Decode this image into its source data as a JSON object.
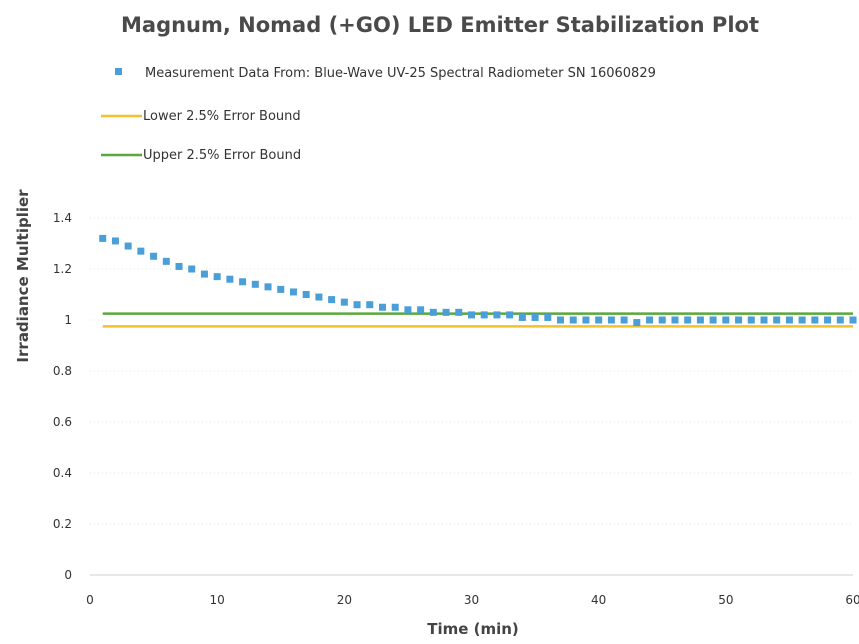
{
  "chart_data": {
    "type": "scatter",
    "title": "Magnum, Nomad (+GO)  LED Emitter Stabilization Plot",
    "xlabel": "Time (min)",
    "ylabel": "Irradiance Multiplier",
    "xlim": [
      0,
      60
    ],
    "ylim": [
      0,
      1.4
    ],
    "x_ticks": [
      0,
      10,
      20,
      30,
      40,
      50,
      60
    ],
    "x_tick_labels": [
      "0",
      "10",
      "20",
      "30",
      "40",
      "50",
      "60"
    ],
    "y_ticks": [
      0,
      0.2,
      0.4,
      0.6,
      0.8,
      1,
      1.2,
      1.4
    ],
    "y_tick_labels": [
      "0",
      "0.2",
      "0.4",
      "0.6",
      "0.8",
      "1",
      "1.2",
      "1.4"
    ],
    "grid": true,
    "legend_position": "top-left",
    "series": [
      {
        "name": "Measurement Data From: Blue-Wave UV-25 Spectral Radiometer SN 16060829",
        "kind": "scatter",
        "color": "#4a9fd8",
        "x": [
          1,
          2,
          3,
          4,
          5,
          6,
          7,
          8,
          9,
          10,
          11,
          12,
          13,
          14,
          15,
          16,
          17,
          18,
          19,
          20,
          21,
          22,
          23,
          24,
          25,
          26,
          27,
          28,
          29,
          30,
          31,
          32,
          33,
          34,
          35,
          36,
          37,
          38,
          39,
          40,
          41,
          42,
          43,
          44,
          45,
          46,
          47,
          48,
          49,
          50,
          51,
          52,
          53,
          54,
          55,
          56,
          57,
          58,
          59,
          60
        ],
        "y": [
          1.32,
          1.31,
          1.29,
          1.27,
          1.25,
          1.23,
          1.21,
          1.2,
          1.18,
          1.17,
          1.16,
          1.15,
          1.14,
          1.13,
          1.12,
          1.11,
          1.1,
          1.09,
          1.08,
          1.07,
          1.06,
          1.06,
          1.05,
          1.05,
          1.04,
          1.04,
          1.03,
          1.03,
          1.03,
          1.02,
          1.02,
          1.02,
          1.02,
          1.01,
          1.01,
          1.01,
          1.0,
          1.0,
          1.0,
          1.0,
          1.0,
          1.0,
          0.99,
          1.0,
          1.0,
          1.0,
          1.0,
          1.0,
          1.0,
          1.0,
          1.0,
          1.0,
          1.0,
          1.0,
          1.0,
          1.0,
          1.0,
          1.0,
          1.0,
          1.0
        ]
      },
      {
        "name": "Lower 2.5% Error Bound",
        "kind": "line",
        "color": "#f2c12e",
        "x": [
          1,
          60
        ],
        "y": [
          0.975,
          0.975
        ]
      },
      {
        "name": "Upper 2.5% Error Bound",
        "kind": "line",
        "color": "#5aa83a",
        "x": [
          1,
          60
        ],
        "y": [
          1.025,
          1.025
        ]
      }
    ]
  }
}
